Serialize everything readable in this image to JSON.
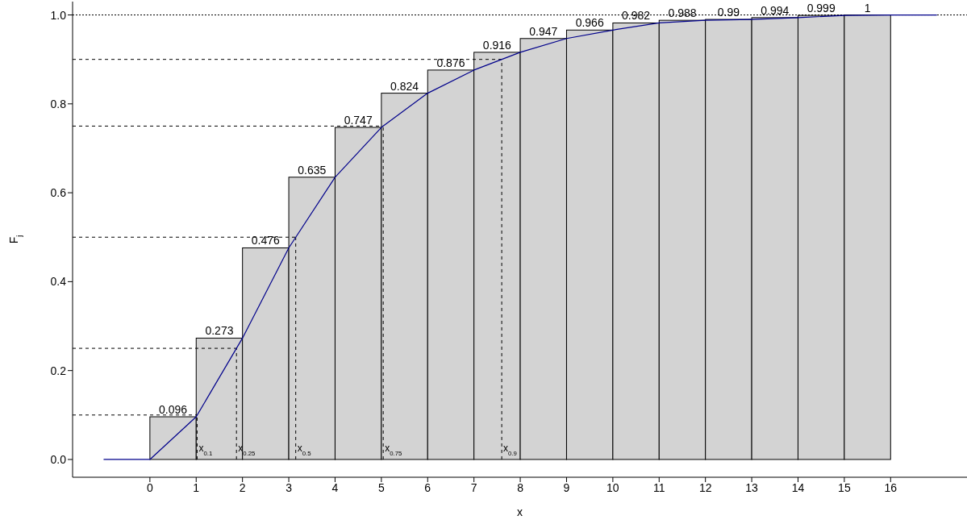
{
  "chart_data": {
    "type": "histogram",
    "xlabel": "x",
    "ylabel": "F$_{j}$",
    "bins": [
      0,
      1,
      2,
      3,
      4,
      5,
      6,
      7,
      8,
      9,
      10,
      11,
      12,
      13,
      14,
      15,
      16
    ],
    "values": [
      0.096,
      0.273,
      0.476,
      0.635,
      0.747,
      0.824,
      0.876,
      0.916,
      0.947,
      0.966,
      0.982,
      0.988,
      0.99,
      0.994,
      0.999,
      1
    ],
    "color": "#d3d3d3",
    "value_labels": [
      "0.096",
      "0.273",
      "0.476",
      "0.635",
      "0.747",
      "0.824",
      "0.876",
      "0.916",
      "0.947",
      "0.966",
      "0.982",
      "0.988",
      "0.99",
      "0.994",
      "0.999",
      "1"
    ],
    "series": [
      {
        "type": "line",
        "color": "#00008b",
        "x": [
          -1,
          0,
          1,
          2,
          3,
          4,
          5,
          6,
          7,
          8,
          9,
          10,
          11,
          12,
          13,
          14,
          15,
          16,
          17
        ],
        "values": [
          0,
          0,
          0.096,
          0.273,
          0.476,
          0.635,
          0.747,
          0.824,
          0.876,
          0.916,
          0.947,
          0.966,
          0.982,
          0.988,
          0.99,
          0.994,
          0.999,
          1,
          1
        ]
      }
    ],
    "xlim": [
      -1.67,
      17.65
    ],
    "ylim": [
      -0.04,
      1.03
    ],
    "xticks": [
      0,
      1,
      2,
      3,
      4,
      5,
      6,
      7,
      8,
      9,
      10,
      11,
      12,
      13,
      14,
      15,
      16
    ],
    "yticks": [
      {
        "value": 0,
        "label": "0.0"
      },
      {
        "value": 0.2,
        "label": "0.2"
      },
      {
        "value": 0.4,
        "label": "0.4"
      },
      {
        "value": 0.6,
        "label": "0.6"
      },
      {
        "value": 0.8,
        "label": "0.8"
      },
      {
        "value": 1,
        "label": "1.0"
      }
    ],
    "ref_lines": [
      {
        "axis": "y",
        "value": 0.1,
        "line_style": "dashed"
      },
      {
        "axis": "y",
        "value": 0.25,
        "line_style": "dashed"
      },
      {
        "axis": "y",
        "value": 0.5,
        "line_style": "dashed"
      },
      {
        "axis": "y",
        "value": 0.75,
        "line_style": "dashed"
      },
      {
        "axis": "y",
        "value": 0.9,
        "line_style": "dashed"
      },
      {
        "axis": "x",
        "value": 1.02,
        "line_style": "dashed"
      },
      {
        "axis": "x",
        "value": 1.87,
        "line_style": "dashed"
      },
      {
        "axis": "x",
        "value": 3.15,
        "line_style": "dashed"
      },
      {
        "axis": "x",
        "value": 5.04,
        "line_style": "dashed"
      },
      {
        "axis": "x",
        "value": 7.6,
        "line_style": "dashed"
      },
      {
        "axis": "y",
        "value": 1,
        "line_style": "dotted"
      }
    ],
    "annotations": [
      {
        "text": "x$_{0.1}$",
        "x": 1.02,
        "y": 0
      },
      {
        "text": "x$_{0.25}$",
        "x": 1.87,
        "y": 0
      },
      {
        "text": "x$_{0.5}$",
        "x": 3.15,
        "y": 0
      },
      {
        "text": "x$_{0.75}$",
        "x": 5.04,
        "y": 0
      },
      {
        "text": "x$_{0.9}$",
        "x": 7.6,
        "y": 0
      }
    ],
    "grid": false,
    "legend": false
  }
}
